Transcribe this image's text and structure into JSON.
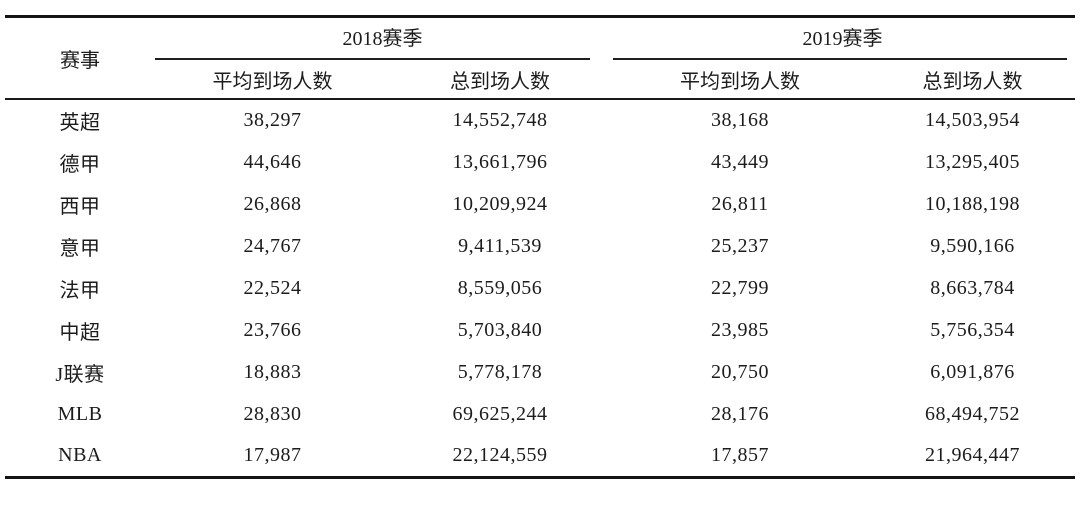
{
  "colors": {
    "background": "#ffffff",
    "text": "#1c1c1c",
    "rule": "#141414"
  },
  "table": {
    "league_column_header": "赛事",
    "groups": [
      {
        "label": "2018赛季",
        "subcolumns": [
          "平均到场人数",
          "总到场人数"
        ]
      },
      {
        "label": "2019赛季",
        "subcolumns": [
          "平均到场人数",
          "总到场人数"
        ]
      }
    ]
  },
  "chart_data": {
    "type": "table",
    "title": "",
    "columns": [
      "赛事",
      "2018赛季 平均到场人数",
      "2018赛季 总到场人数",
      "2019赛季 平均到场人数",
      "2019赛季 总到场人数"
    ],
    "rows": [
      [
        "英超",
        "38,297",
        "14,552,748",
        "38,168",
        "14,503,954"
      ],
      [
        "德甲",
        "44,646",
        "13,661,796",
        "43,449",
        "13,295,405"
      ],
      [
        "西甲",
        "26,868",
        "10,209,924",
        "26,811",
        "10,188,198"
      ],
      [
        "意甲",
        "24,767",
        "9,411,539",
        "25,237",
        "9,590,166"
      ],
      [
        "法甲",
        "22,524",
        "8,559,056",
        "22,799",
        "8,663,784"
      ],
      [
        "中超",
        "23,766",
        "5,703,840",
        "23,985",
        "5,756,354"
      ],
      [
        "J联赛",
        "18,883",
        "5,778,178",
        "20,750",
        "6,091,876"
      ],
      [
        "MLB",
        "28,830",
        "69,625,244",
        "28,176",
        "68,494,752"
      ],
      [
        "NBA",
        "17,987",
        "22,124,559",
        "17,857",
        "21,964,447"
      ]
    ]
  }
}
